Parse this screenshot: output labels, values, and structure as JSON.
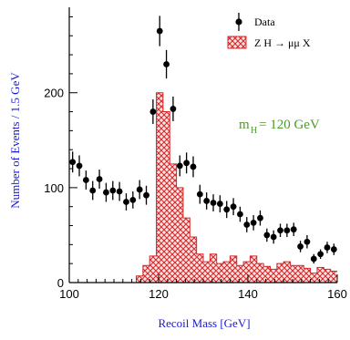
{
  "chart_data": {
    "type": "histogram-with-points",
    "xlabel": "Recoil Mass  [GeV]",
    "ylabel": "Number of Events / 1.5 GeV",
    "xlim": [
      100,
      160
    ],
    "ylim": [
      0,
      290
    ],
    "x_ticks": [
      100,
      120,
      140,
      160
    ],
    "y_ticks": [
      0,
      100,
      200
    ],
    "grid": false,
    "legend_position": "top-right",
    "legend": {
      "data_label": "Data",
      "hist_label": "Z H → μμ X"
    },
    "annotation": {
      "m": "m",
      "sub": "H",
      "value": " =  120  GeV"
    },
    "colors": {
      "hist": "#d62728",
      "points": "#000000",
      "axis_title": "#1a1ad6",
      "annotation": "#4c9a2a"
    },
    "bin_width": 1.5,
    "histogram": {
      "x_start": 100,
      "values": [
        0,
        0,
        0,
        0,
        0,
        0,
        0,
        0,
        0,
        0,
        7,
        18,
        28,
        200,
        180,
        125,
        100,
        68,
        48,
        30,
        22,
        30,
        20,
        22,
        28,
        18,
        22,
        28,
        20,
        17,
        14,
        20,
        22,
        18,
        18,
        15,
        10,
        16,
        14,
        12
      ]
    },
    "data_points": {
      "x": [
        100.75,
        102.25,
        103.75,
        105.25,
        106.75,
        108.25,
        109.75,
        111.25,
        112.75,
        114.25,
        115.75,
        117.25,
        118.75,
        120.25,
        121.75,
        123.25,
        124.75,
        126.25,
        127.75,
        129.25,
        130.75,
        132.25,
        133.75,
        135.25,
        136.75,
        138.25,
        139.75,
        141.25,
        142.75,
        144.25,
        145.75,
        147.25,
        148.75,
        150.25,
        151.75,
        153.25,
        154.75,
        156.25,
        157.75,
        159.25
      ],
      "y": [
        127,
        123,
        108,
        97,
        109,
        95,
        97,
        96,
        85,
        87,
        98,
        92,
        180,
        265,
        230,
        183,
        123,
        126,
        122,
        93,
        86,
        84,
        83,
        77,
        80,
        72,
        61,
        63,
        68,
        50,
        48,
        55,
        55,
        56,
        38,
        43,
        25,
        30,
        37,
        35
      ],
      "err": [
        11,
        11,
        10,
        10,
        10,
        10,
        10,
        10,
        9,
        9,
        10,
        10,
        13,
        16,
        15,
        13,
        11,
        11,
        11,
        10,
        9,
        9,
        9,
        9,
        9,
        8,
        8,
        8,
        8,
        7,
        7,
        7,
        7,
        7,
        6,
        7,
        5,
        5,
        6,
        6
      ]
    }
  }
}
